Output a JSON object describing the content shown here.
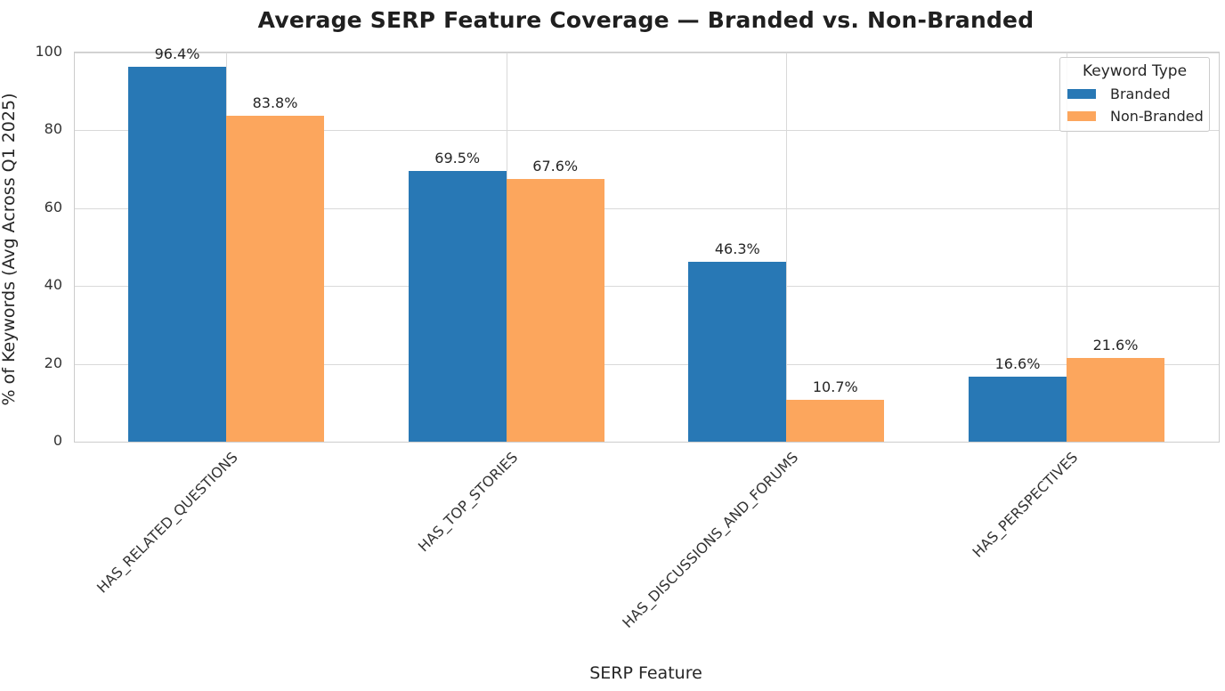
{
  "chart_data": {
    "type": "bar",
    "title": "Average SERP Feature Coverage — Branded vs. Non-Branded",
    "xlabel": "SERP Feature",
    "ylabel": "% of Keywords (Avg Across Q1 2025)",
    "categories": [
      "HAS_RELATED_QUESTIONS",
      "HAS_TOP_STORIES",
      "HAS_DISCUSSIONS_AND_FORUMS",
      "HAS_PERSPECTIVES"
    ],
    "series": [
      {
        "name": "Branded",
        "color": "#2878b5",
        "values": [
          96.4,
          69.5,
          46.3,
          16.6
        ]
      },
      {
        "name": "Non-Branded",
        "color": "#fca65d",
        "values": [
          83.8,
          67.6,
          10.7,
          21.6
        ]
      }
    ],
    "value_label_suffix": "%",
    "ylim": [
      0,
      100
    ],
    "yticks": [
      0,
      20,
      40,
      60,
      80,
      100
    ],
    "grid": true,
    "legend": {
      "title": "Keyword Type",
      "position": "upper right"
    }
  },
  "colors": {
    "branded": "#2878b5",
    "non_branded": "#fca65d",
    "gridline": "#d9d9d9",
    "spine": "#cccccc",
    "text": "#262626"
  }
}
